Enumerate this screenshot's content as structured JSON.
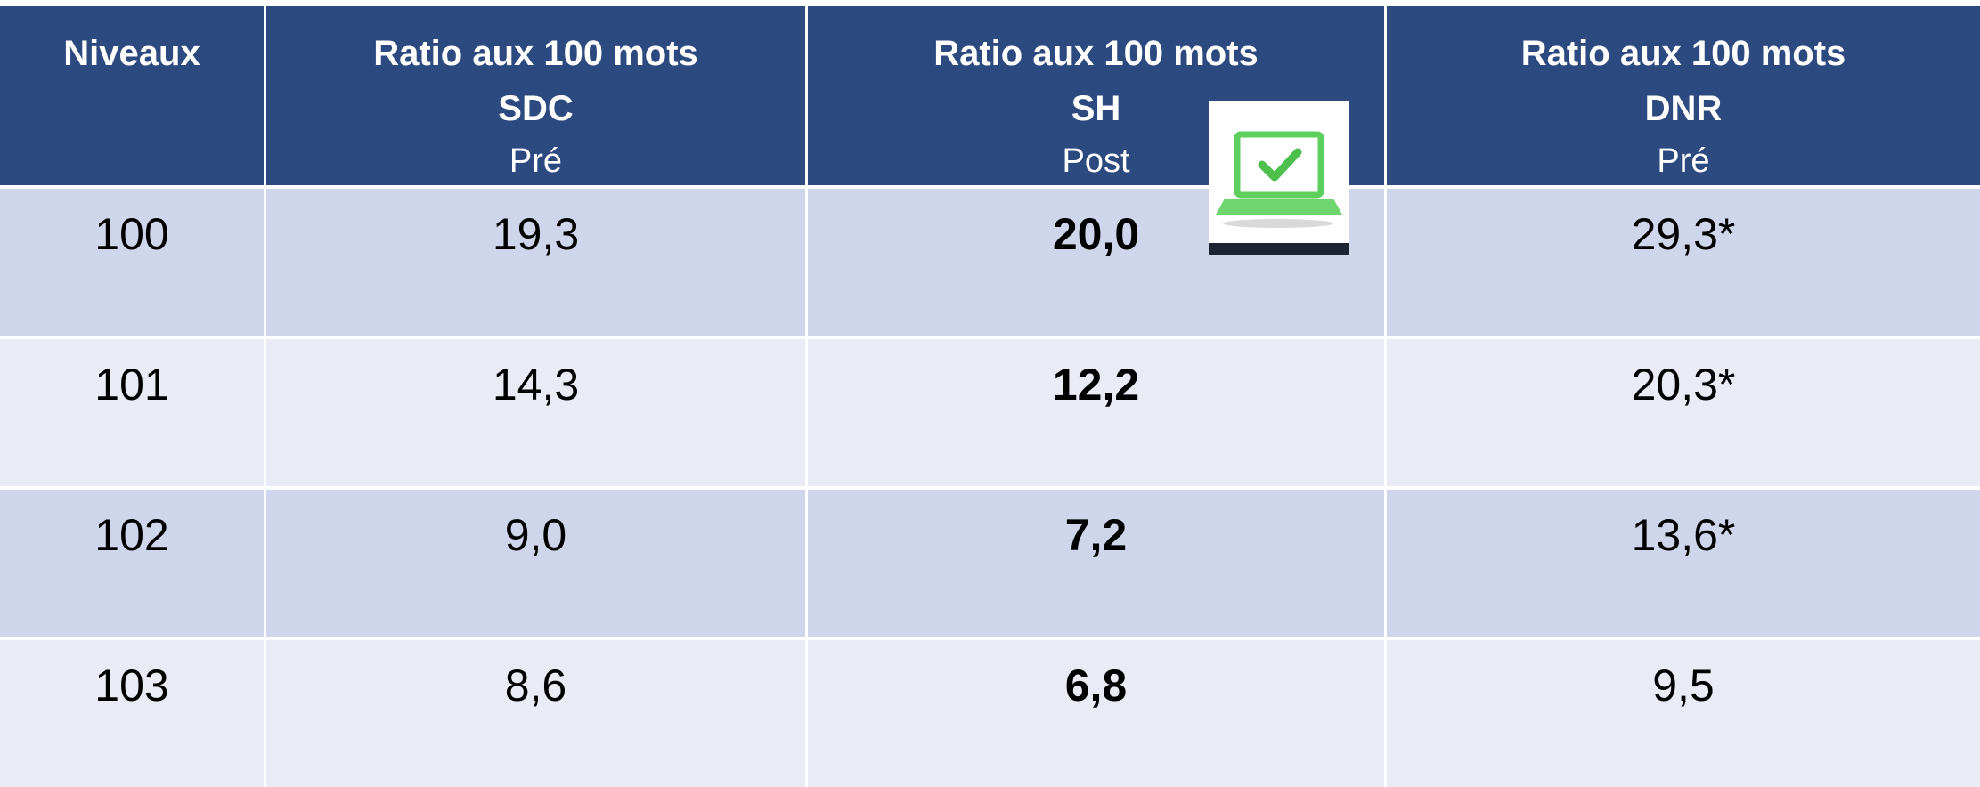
{
  "table": {
    "header": [
      [
        "Niveaux"
      ],
      [
        "Ratio aux 100 mots",
        "SDC",
        "Pré"
      ],
      [
        "Ratio aux 100 mots",
        "SH",
        "Post"
      ],
      [
        "Ratio aux 100 mots",
        "DNR",
        "Pré"
      ]
    ],
    "rows": [
      [
        "100",
        "19,3",
        "20,0",
        "29,3*"
      ],
      [
        "101",
        "14,3",
        "12,2",
        "20,3*"
      ],
      [
        "102",
        "9,0",
        "7,2",
        "13,6*"
      ],
      [
        "103",
        "8,6",
        "6,8",
        "9,5"
      ]
    ]
  }
}
